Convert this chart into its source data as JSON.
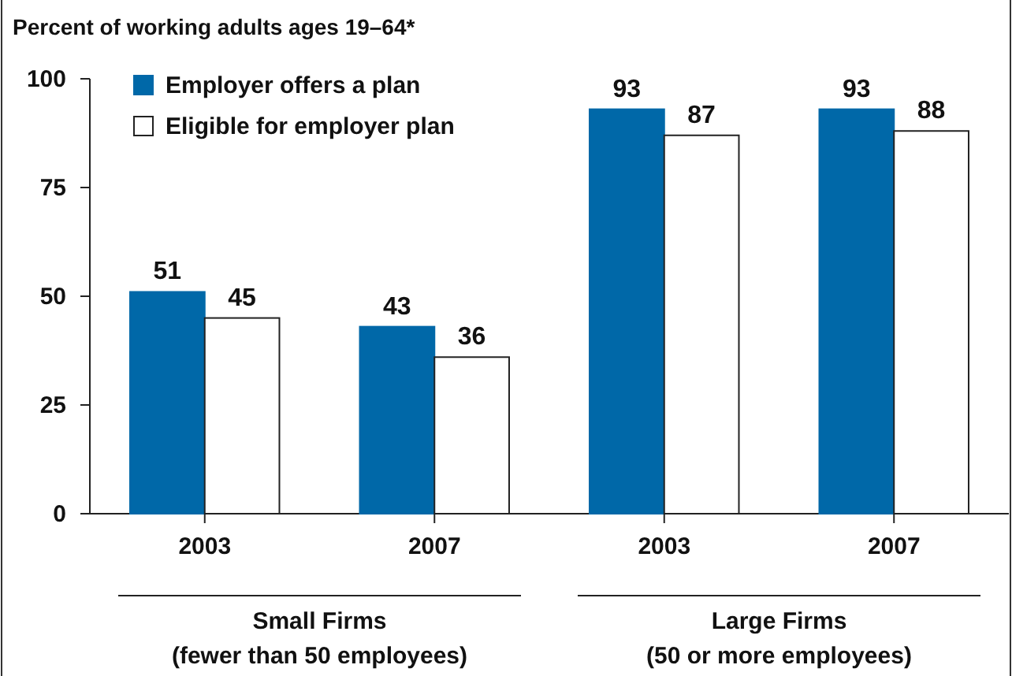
{
  "chart_data": {
    "type": "bar",
    "title": "Percent of working adults ages 19–64*",
    "categories": [
      "2003",
      "2007",
      "2003",
      "2007"
    ],
    "series": [
      {
        "name": "Employer offers a plan",
        "color": "#0068a8",
        "values": [
          51,
          43,
          93,
          93
        ]
      },
      {
        "name": "Eligible for employer plan",
        "color": "#ffffff",
        "values": [
          45,
          36,
          87,
          88
        ]
      }
    ],
    "ylim": [
      0,
      100
    ],
    "yticks": [
      0,
      25,
      50,
      75,
      100
    ],
    "data_labels": true,
    "legend": "top left",
    "grid": false,
    "annotations": [
      "Small Firms\n(fewer than 50 employees)",
      "Large Firms\n(50 or more employees)"
    ]
  }
}
